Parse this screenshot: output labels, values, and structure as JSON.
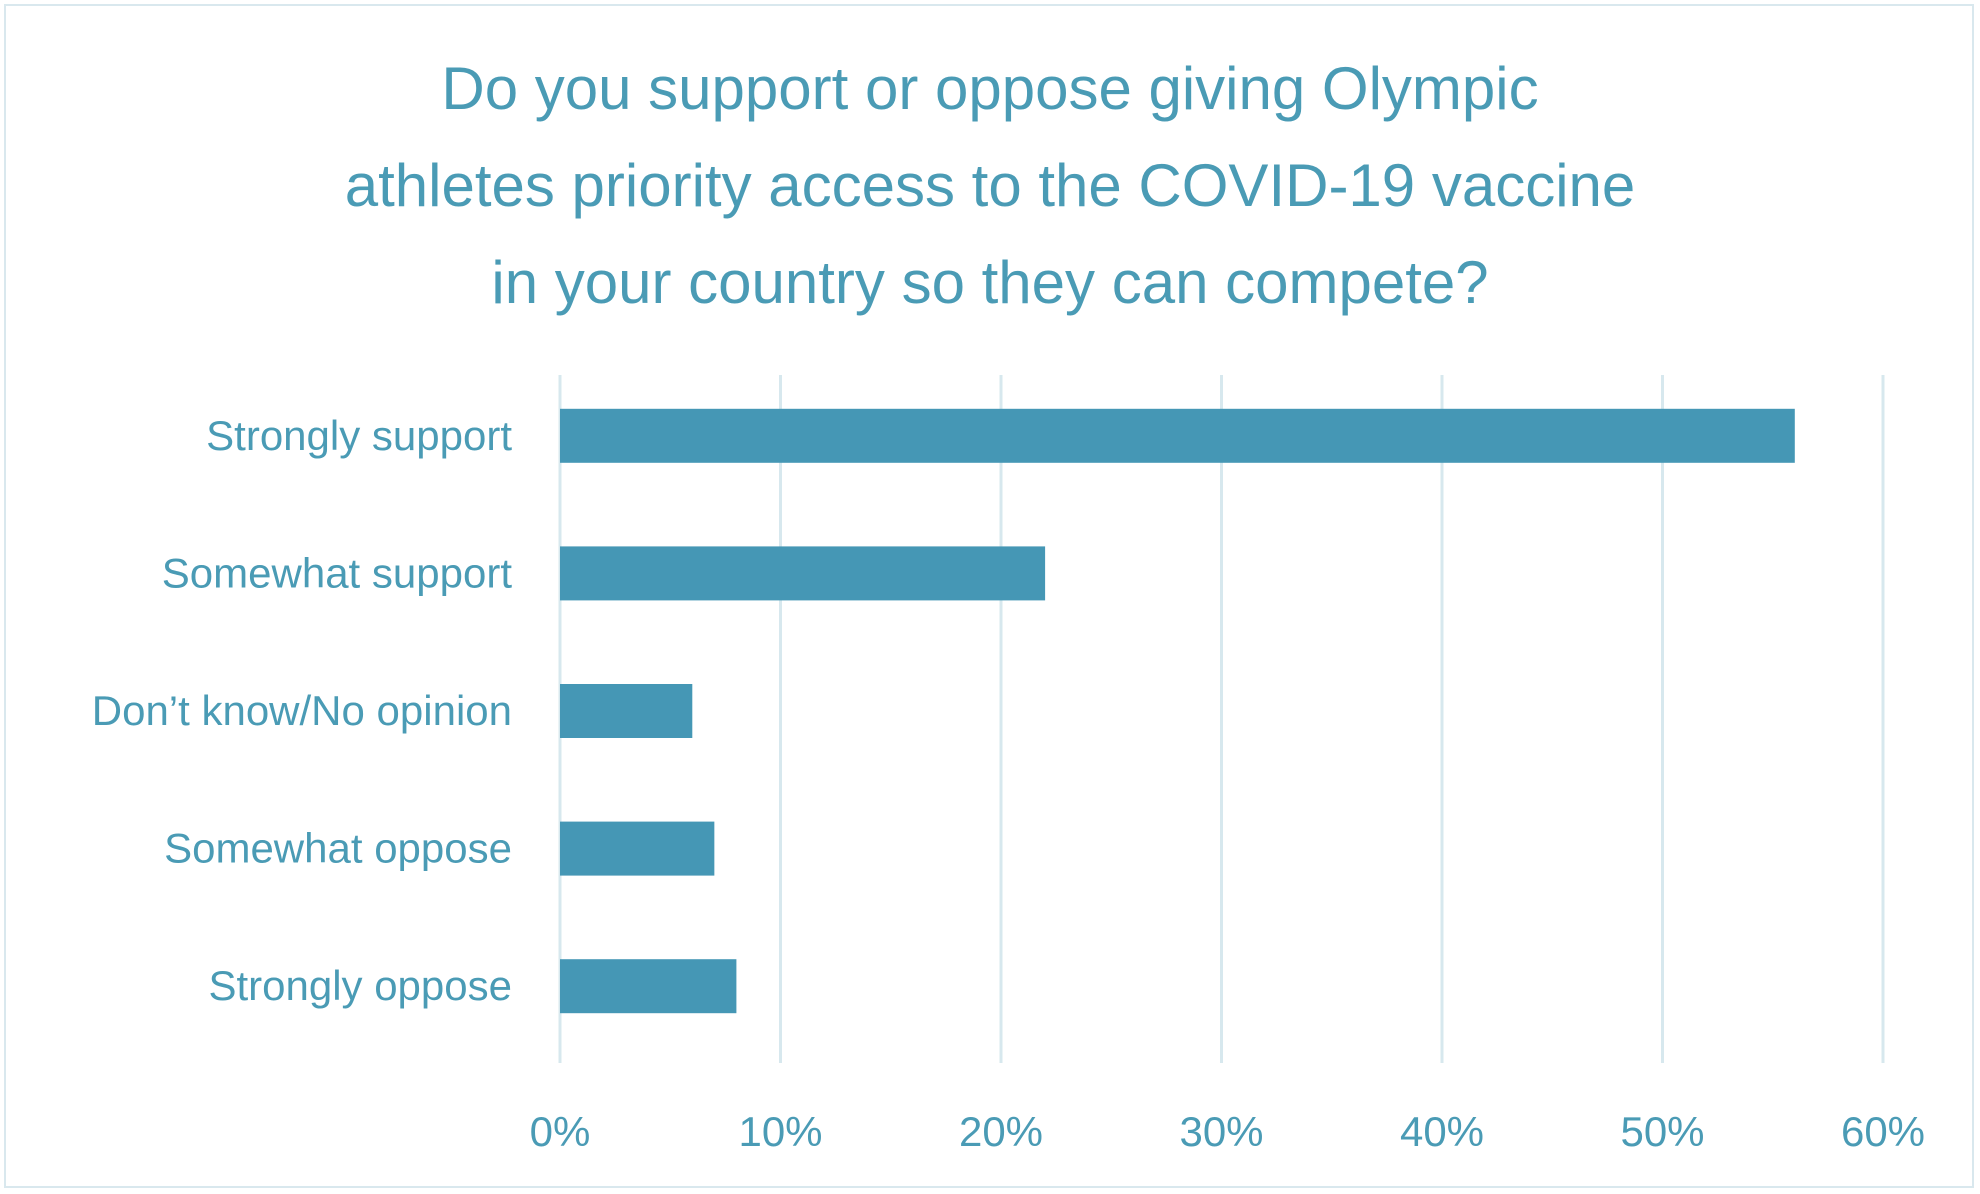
{
  "chart_data": {
    "type": "bar",
    "orientation": "horizontal",
    "title_lines": [
      "Do you support or oppose giving Olympic",
      "athletes priority access to the COVID-19 vaccine",
      "in your country so they can compete?"
    ],
    "categories": [
      "Strongly support",
      "Somewhat support",
      "Don’t know/No opinion",
      "Somewhat oppose",
      "Strongly oppose"
    ],
    "values": [
      56,
      22,
      6,
      7,
      8
    ],
    "unit": "%",
    "xlim": [
      0,
      60
    ],
    "xticks": [
      0,
      10,
      20,
      30,
      40,
      50,
      60
    ],
    "xtick_labels": [
      "0%",
      "10%",
      "20%",
      "30%",
      "40%",
      "50%",
      "60%"
    ],
    "xlabel": "",
    "ylabel": "",
    "grid": "vertical",
    "legend": "none",
    "colors": {
      "bar": "#4597b5",
      "text": "#4a9bb5",
      "grid": "#d7e8ee"
    }
  }
}
